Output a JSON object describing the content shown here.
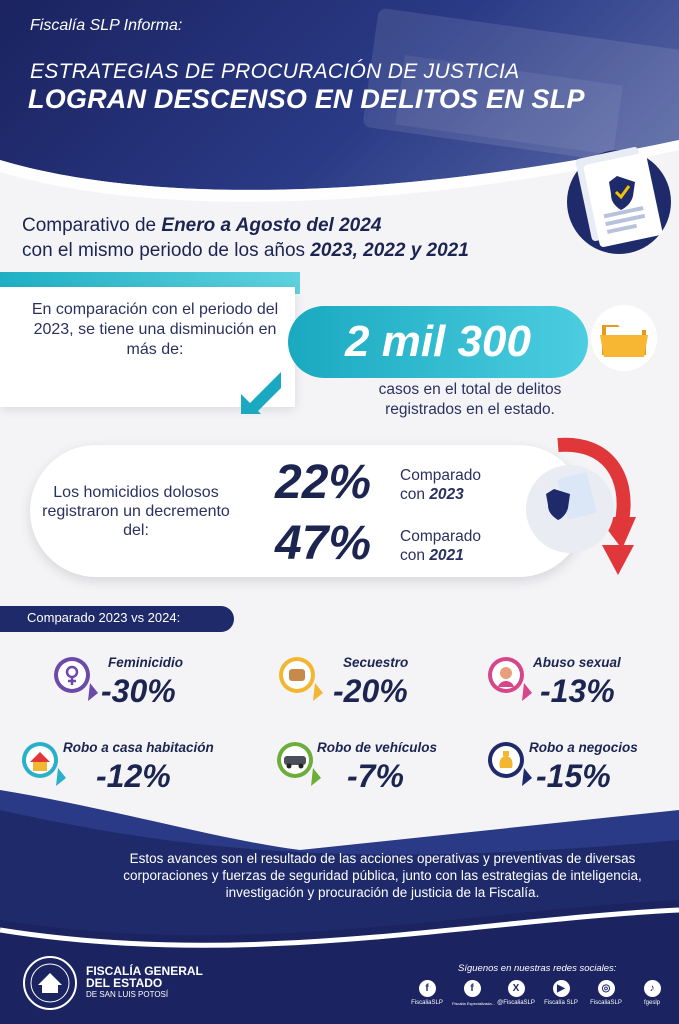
{
  "header": {
    "kicker": "Fiscalía SLP Informa:",
    "title_line1": "ESTRATEGIAS DE PROCURACIÓN DE JUSTICIA",
    "title_line2": "LOGRAN DESCENSO EN DELITOS EN SLP"
  },
  "comparison_heading": {
    "line1_prefix": "Comparativo de ",
    "line1_bold": "Enero a Agosto del 2024",
    "line2_prefix": "con el mismo periodo de los años ",
    "line2_bold": "2023, 2022 y 2021"
  },
  "decrease_block": {
    "intro": "En comparación con el periodo del 2023, se tiene una disminución en más de:",
    "amount": "2 mil 300",
    "description": "casos en el total de delitos registrados en el estado."
  },
  "homicide_block": {
    "intro": "Los homicidios dolosos registraron un decremento del:",
    "rows": [
      {
        "percent": "22%",
        "label": "Comparado",
        "prefix": "con ",
        "year": "2023"
      },
      {
        "percent": "47%",
        "label": "Comparado",
        "prefix": "con ",
        "year": "2021"
      }
    ]
  },
  "crime_comparison": {
    "tag": "Comparado 2023 vs 2024:",
    "items": [
      {
        "label": "Feminicidio",
        "value": "-30%"
      },
      {
        "label": "Secuestro",
        "value": "-20%"
      },
      {
        "label": "Abuso sexual",
        "value": "-13%"
      },
      {
        "label": "Robo a casa habitación",
        "value": "-12%"
      },
      {
        "label": "Robo de vehículos",
        "value": "-7%"
      },
      {
        "label": "Robo a negocios",
        "value": "-15%"
      }
    ]
  },
  "footer": {
    "note": "Estos avances son el resultado de las acciones operativas y preventivas de diversas corporaciones y fuerzas de seguridad pública, junto con las estrategias de inteligencia, investigación y procuración de justicia de la Fiscalía.",
    "org_line1": "FISCALÍA GENERAL",
    "org_line2": "DEL ESTADO",
    "org_line3": "DE SAN LUIS POTOSÍ",
    "follow": "Síguenos en nuestras redes sociales:",
    "socials": [
      {
        "icon": "facebook-icon",
        "glyph": "f",
        "name": "FiscaliaSLP"
      },
      {
        "icon": "facebook-icon",
        "glyph": "f",
        "name": "Fiscalía Especializada..."
      },
      {
        "icon": "x-icon",
        "glyph": "X",
        "name": "@FiscaliaSLP"
      },
      {
        "icon": "youtube-icon",
        "glyph": "▶",
        "name": "Fiscalía SLP"
      },
      {
        "icon": "instagram-icon",
        "glyph": "◎",
        "name": "FiscaliaSLP"
      },
      {
        "icon": "tiktok-icon",
        "glyph": "♪",
        "name": "fgeslp"
      }
    ]
  },
  "colors": {
    "navy": "#1c2550",
    "blue": "#1f2a6a",
    "cyan": "#1aa9c0",
    "red": "#e0383a"
  }
}
